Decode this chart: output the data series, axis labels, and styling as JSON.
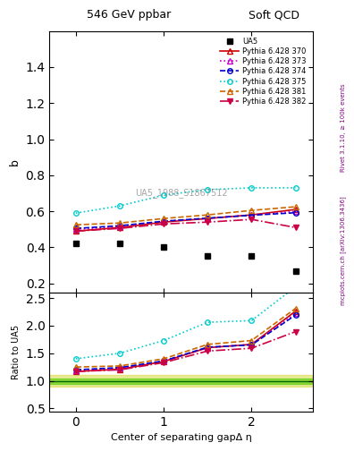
{
  "title_left": "546 GeV ppbar",
  "title_right": "Soft QCD",
  "ylabel_main": "b",
  "ylabel_ratio": "Ratio to UA5",
  "xlabel": "Center of separating gapΔ η",
  "right_label": "Rivet 3.1.10, ≥ 100k events",
  "watermark": "UA5_1988_S1867512",
  "right_label2": "mcplots.cern.ch [arXiv:1306.3436]",
  "ylim_main": [
    0.15,
    1.6
  ],
  "ylim_ratio": [
    0.45,
    2.6
  ],
  "yticks_main": [
    0.2,
    0.4,
    0.6,
    0.8,
    1.0,
    1.2,
    1.4
  ],
  "yticks_ratio": [
    0.5,
    1.0,
    1.5,
    2.0,
    2.5
  ],
  "xlim": [
    -0.3,
    2.7
  ],
  "xticks": [
    0,
    1,
    2
  ],
  "ua5_x": [
    0.0,
    0.5,
    1.0,
    1.5,
    2.0,
    2.5
  ],
  "ua5_y": [
    0.42,
    0.42,
    0.4,
    0.35,
    0.35,
    0.27
  ],
  "series": [
    {
      "label": "Pythia 6.428 370",
      "color": "#cc0000",
      "linestyle": "-",
      "marker": "^",
      "markerfacecolor": "none",
      "x": [
        0.0,
        0.5,
        1.0,
        1.5,
        2.0,
        2.5
      ],
      "y": [
        0.49,
        0.51,
        0.54,
        0.56,
        0.58,
        0.61
      ]
    },
    {
      "label": "Pythia 6.428 373",
      "color": "#cc00cc",
      "linestyle": ":",
      "marker": "^",
      "markerfacecolor": "none",
      "x": [
        0.0,
        0.5,
        1.0,
        1.5,
        2.0,
        2.5
      ],
      "y": [
        0.5,
        0.515,
        0.545,
        0.56,
        0.58,
        0.6
      ]
    },
    {
      "label": "Pythia 6.428 374",
      "color": "#0000cc",
      "linestyle": "--",
      "marker": "o",
      "markerfacecolor": "none",
      "x": [
        0.0,
        0.5,
        1.0,
        1.5,
        2.0,
        2.5
      ],
      "y": [
        0.505,
        0.52,
        0.545,
        0.562,
        0.578,
        0.592
      ]
    },
    {
      "label": "Pythia 6.428 375",
      "color": "#00cccc",
      "linestyle": ":",
      "marker": "o",
      "markerfacecolor": "none",
      "x": [
        0.0,
        0.5,
        1.0,
        1.5,
        2.0,
        2.5
      ],
      "y": [
        0.59,
        0.63,
        0.69,
        0.72,
        0.73,
        0.73
      ]
    },
    {
      "label": "Pythia 6.428 381",
      "color": "#cc6600",
      "linestyle": "--",
      "marker": "^",
      "markerfacecolor": "none",
      "x": [
        0.0,
        0.5,
        1.0,
        1.5,
        2.0,
        2.5
      ],
      "y": [
        0.525,
        0.535,
        0.56,
        0.58,
        0.605,
        0.625
      ]
    },
    {
      "label": "Pythia 6.428 382",
      "color": "#cc0044",
      "linestyle": "-.",
      "marker": "v",
      "markerfacecolor": "#cc0044",
      "x": [
        0.0,
        0.5,
        1.0,
        1.5,
        2.0,
        2.5
      ],
      "y": [
        0.49,
        0.505,
        0.53,
        0.54,
        0.555,
        0.51
      ]
    }
  ],
  "ratio_series": [
    {
      "label": "Pythia 6.428 370",
      "color": "#cc0000",
      "linestyle": "-",
      "marker": "^",
      "markerfacecolor": "none",
      "x": [
        0.0,
        0.5,
        1.0,
        1.5,
        2.0,
        2.5
      ],
      "y": [
        1.17,
        1.21,
        1.35,
        1.6,
        1.66,
        2.26
      ]
    },
    {
      "label": "Pythia 6.428 373",
      "color": "#cc00cc",
      "linestyle": ":",
      "marker": "^",
      "markerfacecolor": "none",
      "x": [
        0.0,
        0.5,
        1.0,
        1.5,
        2.0,
        2.5
      ],
      "y": [
        1.19,
        1.23,
        1.36,
        1.6,
        1.66,
        2.22
      ]
    },
    {
      "label": "Pythia 6.428 374",
      "color": "#0000cc",
      "linestyle": "--",
      "marker": "o",
      "markerfacecolor": "none",
      "x": [
        0.0,
        0.5,
        1.0,
        1.5,
        2.0,
        2.5
      ],
      "y": [
        1.2,
        1.24,
        1.36,
        1.61,
        1.65,
        2.19
      ]
    },
    {
      "label": "Pythia 6.428 375",
      "color": "#00cccc",
      "linestyle": ":",
      "marker": "o",
      "markerfacecolor": "none",
      "x": [
        0.0,
        0.5,
        1.0,
        1.5,
        2.0,
        2.5
      ],
      "y": [
        1.4,
        1.5,
        1.73,
        2.06,
        2.09,
        2.7
      ]
    },
    {
      "label": "Pythia 6.428 381",
      "color": "#cc6600",
      "linestyle": "--",
      "marker": "^",
      "markerfacecolor": "none",
      "x": [
        0.0,
        0.5,
        1.0,
        1.5,
        2.0,
        2.5
      ],
      "y": [
        1.25,
        1.27,
        1.4,
        1.66,
        1.73,
        2.31
      ]
    },
    {
      "label": "Pythia 6.428 382",
      "color": "#cc0044",
      "linestyle": "-.",
      "marker": "v",
      "markerfacecolor": "#cc0044",
      "x": [
        0.0,
        0.5,
        1.0,
        1.5,
        2.0,
        2.5
      ],
      "y": [
        1.17,
        1.2,
        1.33,
        1.54,
        1.59,
        1.89
      ]
    }
  ]
}
